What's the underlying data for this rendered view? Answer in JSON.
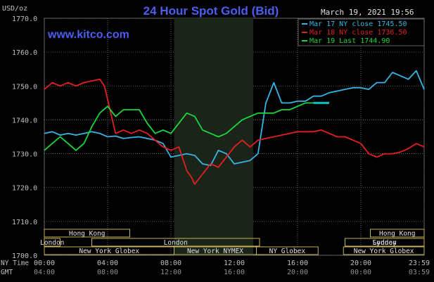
{
  "header": {
    "title": "24 Hour Spot Gold (Bid)",
    "timestamp": "March 19, 2021 19:56",
    "site": "www.kitco.com",
    "unit": "USD/oz"
  },
  "colors": {
    "background": "#000000",
    "title": "#4d5df0",
    "site": "#4d5df0",
    "axis_text": "#c0c0c0",
    "grid": "#7a7a7a",
    "session_box": "#c8b25a",
    "nymex_shade": "#1a2418",
    "mar17": "#35b6e6",
    "mar18": "#e51f1f",
    "mar19": "#19d83a",
    "mar19_last": "#00c0c0"
  },
  "chart_data": {
    "type": "line",
    "title": "24 Hour Spot Gold (Bid)",
    "ylabel": "USD/oz",
    "ylim": [
      1700,
      1770
    ],
    "yticks": [
      "1770.0",
      "1760.0",
      "1750.0",
      "1740.0",
      "1730.0",
      "1720.0",
      "1710.0",
      "1700.0"
    ],
    "ytick_values": [
      1770,
      1760,
      1750,
      1740,
      1730,
      1720,
      1710,
      1700
    ],
    "xlim_hours": [
      0,
      24
    ],
    "x_ny": [
      "00:00",
      "04:00",
      "08:00",
      "12:00",
      "16:00",
      "20:00",
      "23:59"
    ],
    "x_gmt": [
      "04:00",
      "08:00",
      "12:00",
      "16:00",
      "20:00",
      "00:00",
      "03:59"
    ],
    "x_tick_hours": [
      0,
      4,
      8,
      12,
      16,
      20,
      24
    ],
    "x_row_labels": [
      "NY Time",
      "GMT"
    ],
    "grid": true,
    "legend_position": "top-right",
    "legend": [
      {
        "label": "Mar 17 NY close 1745.50",
        "color": "#35b6e6"
      },
      {
        "label": "Mar 18 NY close 1736.50",
        "color": "#e51f1f"
      },
      {
        "label": "Mar 19 Last 1744.90",
        "color": "#19d83a"
      }
    ],
    "nymex_shade_hours": [
      8.2,
      13.2
    ],
    "sessions": [
      {
        "label": "Hong Kong",
        "row": 0,
        "start": 0,
        "end": 5.4
      },
      {
        "label": "Hong Kong",
        "row": 0,
        "start": 20.6,
        "end": 24
      },
      {
        "label": "London",
        "row": 1,
        "start": 0,
        "end": 1.0
      },
      {
        "label": "London",
        "row": 1,
        "start": 3.0,
        "end": 13.6
      },
      {
        "label": "London",
        "row": 1,
        "start": 19.0,
        "end": 24
      },
      {
        "label": "Sydney",
        "row": 1,
        "start": 19.0,
        "end": 24
      },
      {
        "label": "New York Globex",
        "row": 2,
        "start": 0,
        "end": 8.2
      },
      {
        "label": "New York NYMEX",
        "row": 2,
        "start": 8.2,
        "end": 13.4
      },
      {
        "label": "NY Globex",
        "row": 2,
        "start": 13.4,
        "end": 17.3
      },
      {
        "label": "New York Globex",
        "row": 2,
        "start": 18.9,
        "end": 24
      }
    ],
    "series": [
      {
        "name": "Mar 17 NY close 1745.50",
        "color": "#35b6e6",
        "x": [
          0,
          0.5,
          1,
          1.5,
          2,
          2.5,
          3,
          3.5,
          4,
          4.5,
          5,
          5.5,
          6,
          6.5,
          7,
          7.5,
          8,
          8.5,
          9,
          9.5,
          10,
          10.5,
          11,
          11.5,
          12,
          12.5,
          13,
          13.5,
          14,
          14.5,
          15,
          15.5,
          16,
          16.5,
          17,
          17.5,
          18,
          18.5,
          19,
          19.5,
          20,
          20.5,
          21,
          21.5,
          22,
          22.5,
          23,
          23.5,
          24
        ],
        "y": [
          1736,
          1736.5,
          1735.5,
          1736,
          1735.5,
          1736,
          1736.5,
          1736,
          1735,
          1735.2,
          1734.5,
          1734.8,
          1735,
          1734.5,
          1734,
          1733,
          1729,
          1729.5,
          1730,
          1729.5,
          1727,
          1726.5,
          1731,
          1730,
          1727,
          1727.5,
          1728,
          1730,
          1745,
          1751,
          1745,
          1745,
          1745.5,
          1745.5,
          1747,
          1747,
          1748,
          1748.5,
          1749,
          1749.5,
          1749.5,
          1749,
          1751,
          1751,
          1754,
          1753,
          1752,
          1754.5,
          1749
        ]
      },
      {
        "name": "Mar 18 NY close 1736.50",
        "color": "#e51f1f",
        "x": [
          0,
          0.5,
          1,
          1.5,
          2,
          2.5,
          3,
          3.5,
          3.8,
          4.2,
          4.5,
          5,
          5.5,
          6,
          6.5,
          7,
          7.5,
          8,
          8.5,
          9,
          9.3,
          9.5,
          10,
          10.5,
          11,
          11.5,
          12,
          12.5,
          13,
          13.5,
          14,
          14.5,
          15,
          15.5,
          16,
          16.5,
          17,
          17.5,
          18,
          18.5,
          19,
          19.5,
          20,
          20.5,
          21,
          21.5,
          22,
          22.5,
          23,
          23.5,
          24
        ],
        "y": [
          1749,
          1751,
          1750,
          1751,
          1750,
          1751,
          1751.5,
          1752,
          1750,
          1742,
          1736,
          1737,
          1736,
          1737,
          1736,
          1734,
          1732,
          1731,
          1732,
          1725,
          1723,
          1721,
          1724,
          1727,
          1726,
          1729,
          1732,
          1734,
          1732,
          1734,
          1734.5,
          1735,
          1735.5,
          1736,
          1736.5,
          1736.5,
          1736.5,
          1737,
          1736,
          1735,
          1735,
          1734,
          1733,
          1730,
          1729,
          1730,
          1730,
          1730.5,
          1731.5,
          1733,
          1732
        ]
      },
      {
        "name": "Mar 19 Last 1744.90",
        "color": "#19d83a",
        "x": [
          0,
          0.5,
          1,
          1.5,
          2,
          2.5,
          3,
          3.5,
          4,
          4.5,
          5,
          5.5,
          6,
          6.5,
          7,
          7.5,
          8,
          8.5,
          9,
          9.5,
          10,
          10.5,
          11,
          11.5,
          12,
          12.5,
          13,
          13.5,
          14,
          14.5,
          15,
          15.5,
          16,
          16.5,
          17,
          17.5,
          18
        ],
        "y": [
          1731,
          1733,
          1735,
          1733,
          1731,
          1733,
          1738,
          1742,
          1744,
          1741,
          1743,
          1743,
          1743,
          1739,
          1736,
          1737,
          1736,
          1739,
          1742,
          1741,
          1737,
          1736,
          1735,
          1736,
          1738,
          1740,
          1741,
          1742,
          1742,
          1742,
          1743,
          1743,
          1744,
          1745,
          1745,
          1745,
          1745
        ]
      }
    ]
  }
}
